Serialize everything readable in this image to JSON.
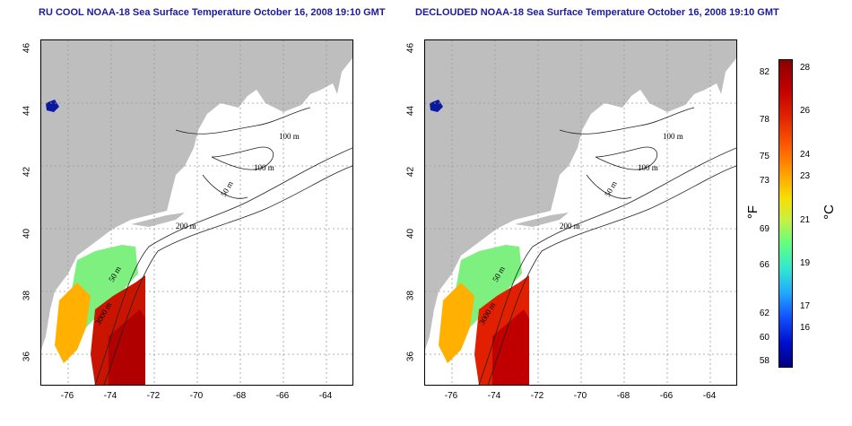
{
  "titles": {
    "left": "RU COOL NOAA-18 Sea Surface Temperature October 16, 2008 19:10 GMT",
    "right": "DECLOUDED NOAA-18 Sea Surface Temperature October 16, 2008 19:10 GMT"
  },
  "axes": {
    "lat_ticks": [
      "46",
      "44",
      "42",
      "40",
      "38",
      "36"
    ],
    "lon_ticks": [
      "-76",
      "-74",
      "-72",
      "-70",
      "-68",
      "-66",
      "-64"
    ]
  },
  "contour_labels": {
    "c100a": "100 m",
    "c100b": "100 m",
    "c50a": "50 m",
    "c200": "200 m",
    "c50b": "50 m",
    "c3000": "3000 m"
  },
  "colorbar": {
    "fahrenheit_unit": "°F",
    "celsius_unit": "°C",
    "fahrenheit_ticks": [
      "82",
      "78",
      "75",
      "73",
      "69",
      "66",
      "62",
      "60",
      "58"
    ],
    "celsius_ticks": [
      "28",
      "26",
      "24",
      "23",
      "21",
      "19",
      "17",
      "16"
    ]
  },
  "colors": {
    "land": "#bebebe",
    "title": "#1a1aa0",
    "sst_warm": "#c81400",
    "sst_mid": "#ff9a00",
    "sst_cool": "#7ef080"
  }
}
